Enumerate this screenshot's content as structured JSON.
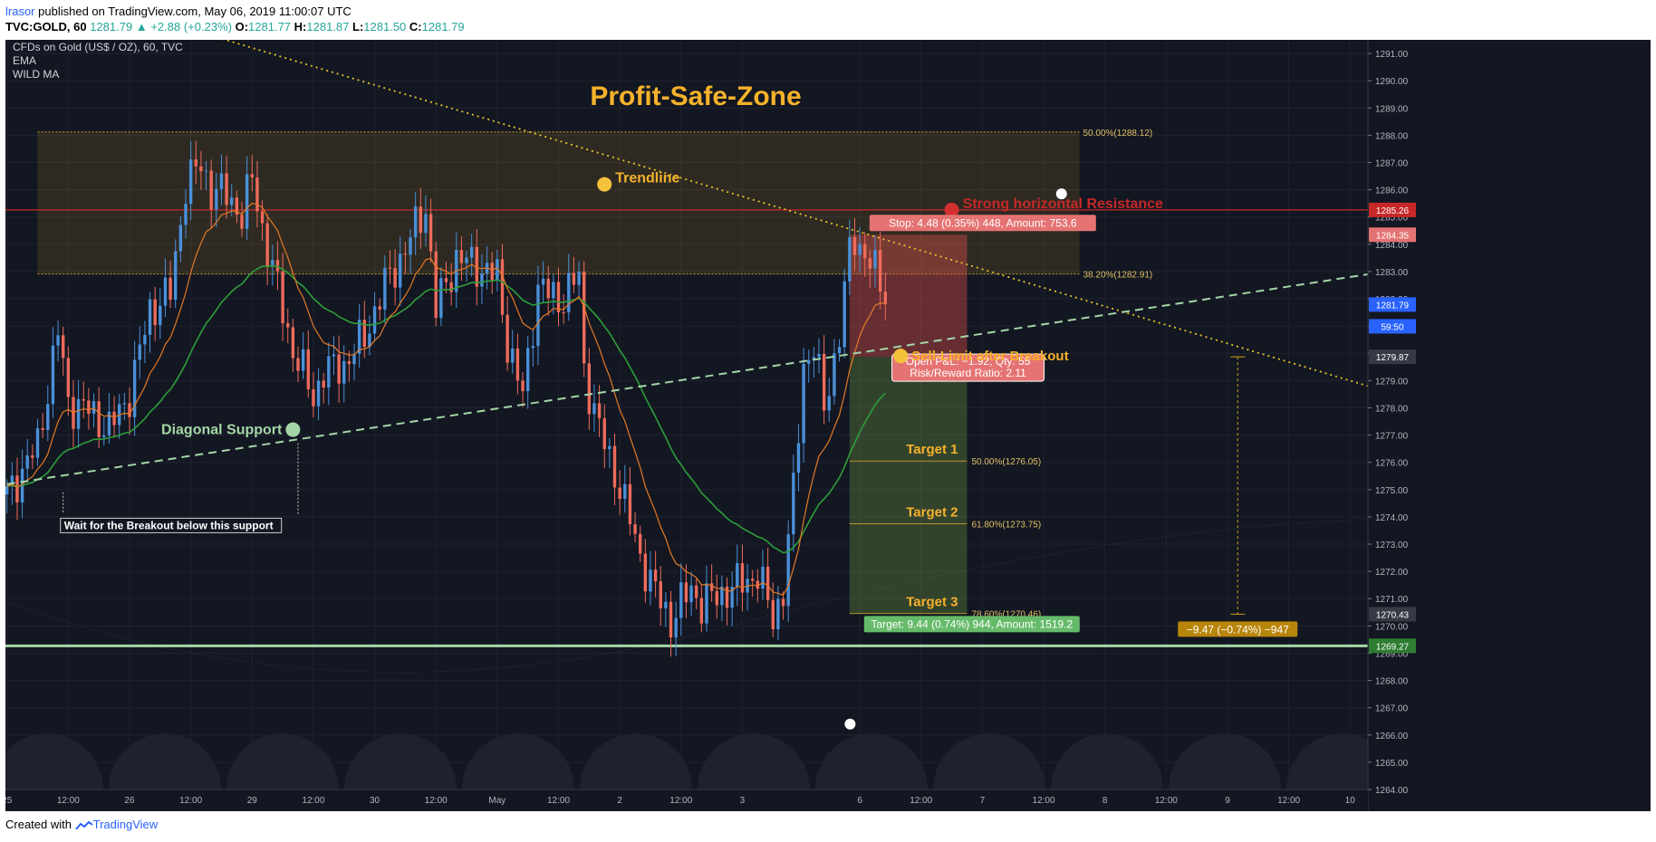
{
  "header": {
    "author": "lrasor",
    "published_text": "published on TradingView.com, May 06, 2019 11:00:07 UTC",
    "symbol": "TVC:GOLD, 60",
    "last": "1281.79",
    "change": "+2.88 (+0.23%)",
    "o_label": "O:",
    "o": "1281.77",
    "h_label": "H:",
    "h": "1281.87",
    "l_label": "L:",
    "l": "1281.50",
    "c_label": "C:",
    "c": "1281.79"
  },
  "legend": {
    "title": "CFDs on Gold (US$ / OZ), 60, TVC",
    "ind1": "EMA",
    "ind2": "WILD MA"
  },
  "footer": {
    "created_with": "Created with",
    "brand": "TradingView"
  },
  "chart_data": {
    "type": "candlestick",
    "title": "Profit-Safe-Zone",
    "ylim": [
      1264.0,
      1291.5
    ],
    "y_ticks": [
      "1264.00",
      "1265.00",
      "1266.00",
      "1267.00",
      "1268.00",
      "1269.00",
      "1270.00",
      "1271.00",
      "1272.00",
      "1273.00",
      "1274.00",
      "1275.00",
      "1276.00",
      "1277.00",
      "1278.00",
      "1279.00",
      "1280.00",
      "1281.00",
      "1282.00",
      "1283.00",
      "1284.00",
      "1285.00",
      "1286.00",
      "1287.00",
      "1288.00",
      "1289.00",
      "1290.00",
      "1291.00"
    ],
    "x_ticks": [
      {
        "t": 0,
        "label": "25"
      },
      {
        "t": 12,
        "label": "12:00"
      },
      {
        "t": 24,
        "label": "26"
      },
      {
        "t": 36,
        "label": "12:00"
      },
      {
        "t": 48,
        "label": "29"
      },
      {
        "t": 60,
        "label": "12:00"
      },
      {
        "t": 72,
        "label": "30"
      },
      {
        "t": 84,
        "label": "12:00"
      },
      {
        "t": 96,
        "label": "May"
      },
      {
        "t": 108,
        "label": "12:00"
      },
      {
        "t": 120,
        "label": "2"
      },
      {
        "t": 132,
        "label": "12:00"
      },
      {
        "t": 144,
        "label": "3"
      },
      {
        "t": 167,
        "label": "6"
      },
      {
        "t": 179,
        "label": "12:00"
      },
      {
        "t": 191,
        "label": "7"
      },
      {
        "t": 203,
        "label": "12:00"
      },
      {
        "t": 215,
        "label": "8"
      },
      {
        "t": 227,
        "label": "12:00"
      },
      {
        "t": 239,
        "label": "9"
      },
      {
        "t": 251,
        "label": "12:00"
      },
      {
        "t": 263,
        "label": "10"
      }
    ],
    "x_range": [
      -0.3,
      266.5
    ],
    "ohlc_anchors": [
      [
        0,
        1274.8
      ],
      [
        6,
        1276.6
      ],
      [
        10,
        1280.8
      ],
      [
        12,
        1278.2
      ],
      [
        16,
        1277.9
      ],
      [
        20,
        1277.2
      ],
      [
        24,
        1278.5
      ],
      [
        28,
        1281.6
      ],
      [
        32,
        1282.2
      ],
      [
        35,
        1286.2
      ],
      [
        38,
        1286.9
      ],
      [
        40,
        1286.0
      ],
      [
        43,
        1285.8
      ],
      [
        46,
        1285.1
      ],
      [
        48,
        1286.4
      ],
      [
        50,
        1284.6
      ],
      [
        54,
        1281.6
      ],
      [
        56,
        1280.1
      ],
      [
        60,
        1278.4
      ],
      [
        62,
        1279.3
      ],
      [
        66,
        1279.6
      ],
      [
        70,
        1280.6
      ],
      [
        74,
        1282.5
      ],
      [
        78,
        1283.8
      ],
      [
        82,
        1285.4
      ],
      [
        84,
        1281.6
      ],
      [
        88,
        1283.5
      ],
      [
        92,
        1283.2
      ],
      [
        96,
        1282.8
      ],
      [
        98,
        1280.4
      ],
      [
        101,
        1278.4
      ],
      [
        104,
        1282.5
      ],
      [
        108,
        1281.9
      ],
      [
        112,
        1282.8
      ],
      [
        113,
        1279.4
      ],
      [
        116,
        1277.2
      ],
      [
        120,
        1275.1
      ],
      [
        124,
        1272.6
      ],
      [
        126,
        1271.6
      ],
      [
        130,
        1270.2
      ],
      [
        134,
        1271.4
      ],
      [
        136,
        1270.8
      ],
      [
        140,
        1271.2
      ],
      [
        144,
        1271.6
      ],
      [
        147,
        1271.9
      ],
      [
        150,
        1270.3
      ],
      [
        152,
        1271.3
      ],
      [
        154,
        1274.9
      ],
      [
        156,
        1279.6
      ],
      [
        158,
        1280.2
      ],
      [
        160,
        1278.0
      ],
      [
        163,
        1280.7
      ],
      [
        165,
        1283.7
      ],
      [
        166,
        1284.3
      ],
      [
        168,
        1283.6
      ],
      [
        171,
        1282.6
      ],
      [
        172,
        1281.8
      ]
    ],
    "ema_fast_label": "EMA",
    "ema_slow_label": "WILD MA",
    "horizontal_levels": [
      {
        "price": 1285.26,
        "color": "#c62828",
        "label": "1285.26"
      },
      {
        "price": 1269.27,
        "color": "#a5d6a7",
        "label": "1269.27"
      }
    ],
    "price_badges": [
      {
        "price": 1284.35,
        "bg": "#e57373",
        "label": "1284.35"
      },
      {
        "price": 1281.79,
        "bg": "#2962ff",
        "label": "1281.79"
      },
      {
        "price": 1280.99,
        "bg": "#2962ff",
        "label": "59:50"
      },
      {
        "price": 1279.87,
        "bg": "#363a45",
        "label": "1279.87"
      },
      {
        "price": 1270.43,
        "bg": "#363a45",
        "label": "1270.43"
      }
    ],
    "fib_zone": {
      "upper": 1288.12,
      "lower": 1282.91,
      "t_from": 6,
      "t_to": 210,
      "upper_label": "50.00%(1288.12)",
      "lower_label": "38.20%(1282.91)"
    },
    "fib_targets": [
      {
        "price": 1276.05,
        "label": "50.00%(1276.05)",
        "target": "Target 1"
      },
      {
        "price": 1273.75,
        "label": "61.80%(1273.75)",
        "target": "Target 2"
      },
      {
        "price": 1270.46,
        "label": "78.60%(1270.46)",
        "target": "Target 3"
      }
    ],
    "position": {
      "entry": 1279.87,
      "stop": 1284.35,
      "target": 1270.43,
      "t_from": 165,
      "t_to": 188,
      "stop_label": "Stop: 4.48 (0.35%) 448, Amount: 753.6",
      "target_label": "Target: 9.44 (0.74%) 944, Amount: 1519.2",
      "pnl_label": "Open P&L: −1.92, Qty: 55",
      "rr_label": "Risk/Reward Ratio: 2.11"
    },
    "trendline": {
      "t1": 34,
      "p1": 1292.0,
      "t2": 266.5,
      "p2": 1278.8,
      "label": "Trendline",
      "dot_t": 117,
      "dot_p": 1286.2
    },
    "support": {
      "t1": 0,
      "p1": 1275.2,
      "t2": 266.5,
      "p2": 1282.9,
      "label": "Diagonal Support",
      "dot_t": 56,
      "dot_p": 1277.2
    },
    "annotations": {
      "breakout_note": "Wait for the Breakout below this support",
      "sell_limit": "Sell-Limit after Breakout",
      "resistance": "Strong horizontal Resistance",
      "measure": "−9.47 (−0.74%) −947"
    },
    "colors": {
      "up": "#4a90d9",
      "down": "#ef6b5b",
      "ema": "#e57a24",
      "wild": "#2e9e3a",
      "title": "#f5b22b",
      "trend": "#e6c229",
      "support": "#a5d6a7"
    }
  }
}
